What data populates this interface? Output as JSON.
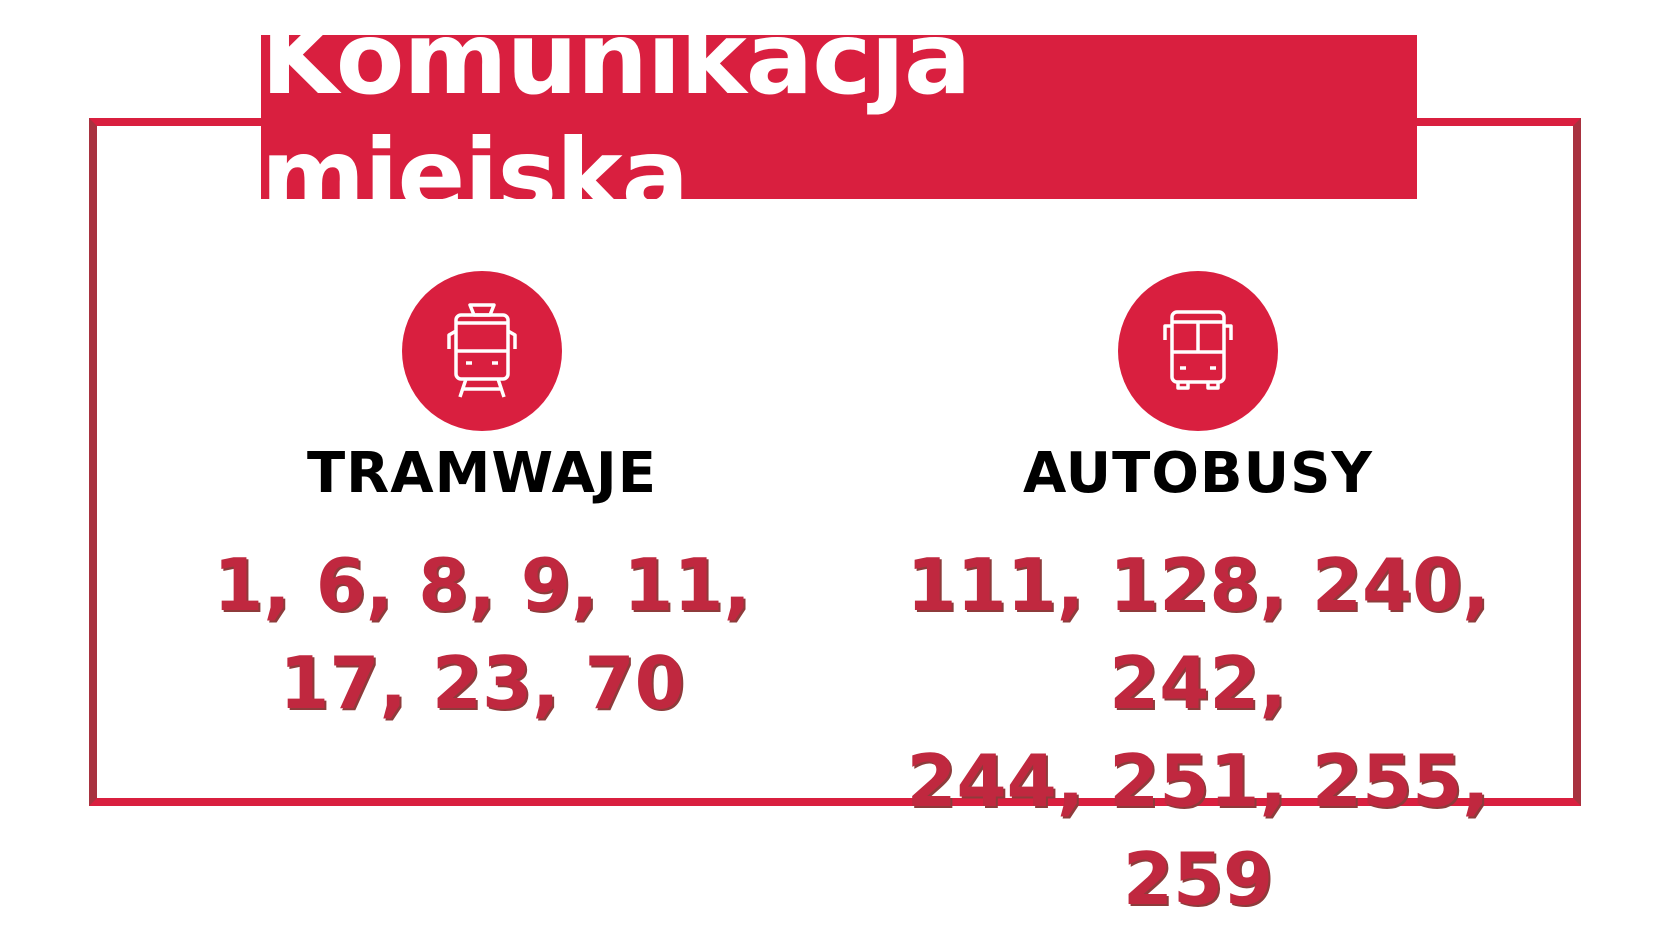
{
  "title": "Komunikacja miejska",
  "colors": {
    "accent": "#d91f3f",
    "numbers": "#c0283f"
  },
  "columns": [
    {
      "icon": "tram-icon",
      "heading": "TRAMWAJE",
      "lines": [
        "1, 6, 8, 9, 11,",
        "17, 23, 70"
      ]
    },
    {
      "icon": "bus-icon",
      "heading": "AUTOBUSY",
      "lines": [
        "111, 128, 240, 242,",
        "244, 251, 255, 259"
      ]
    }
  ]
}
